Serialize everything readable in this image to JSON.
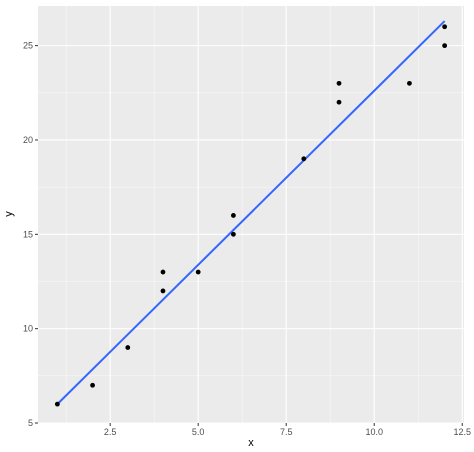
{
  "chart_data": {
    "type": "scatter",
    "xlabel": "x",
    "ylabel": "y",
    "xlim": [
      0.45,
      12.55
    ],
    "ylim": [
      5,
      27.1
    ],
    "x_ticks": [
      2.5,
      5.0,
      7.5,
      10.0,
      12.5
    ],
    "x_tick_labels": [
      "2.5",
      "5.0",
      "7.5",
      "10.0",
      "12.5"
    ],
    "y_ticks": [
      5,
      10,
      15,
      20,
      25
    ],
    "y_tick_labels": [
      "5",
      "10",
      "15",
      "20",
      "25"
    ],
    "grid": true,
    "points": [
      {
        "x": 1,
        "y": 6
      },
      {
        "x": 2,
        "y": 7
      },
      {
        "x": 3,
        "y": 9
      },
      {
        "x": 4,
        "y": 12
      },
      {
        "x": 4,
        "y": 13
      },
      {
        "x": 5,
        "y": 13
      },
      {
        "x": 6,
        "y": 15
      },
      {
        "x": 6,
        "y": 16
      },
      {
        "x": 8,
        "y": 19
      },
      {
        "x": 9,
        "y": 22
      },
      {
        "x": 9,
        "y": 23
      },
      {
        "x": 11,
        "y": 23
      },
      {
        "x": 12,
        "y": 25
      },
      {
        "x": 12,
        "y": 26
      }
    ],
    "fit_line": {
      "x": [
        1,
        12
      ],
      "y": [
        6.0,
        26.3
      ]
    },
    "colors": {
      "panel": "#ebebeb",
      "grid_major": "#ffffff",
      "point": "#000000",
      "fit_line": "#3366ff"
    }
  }
}
